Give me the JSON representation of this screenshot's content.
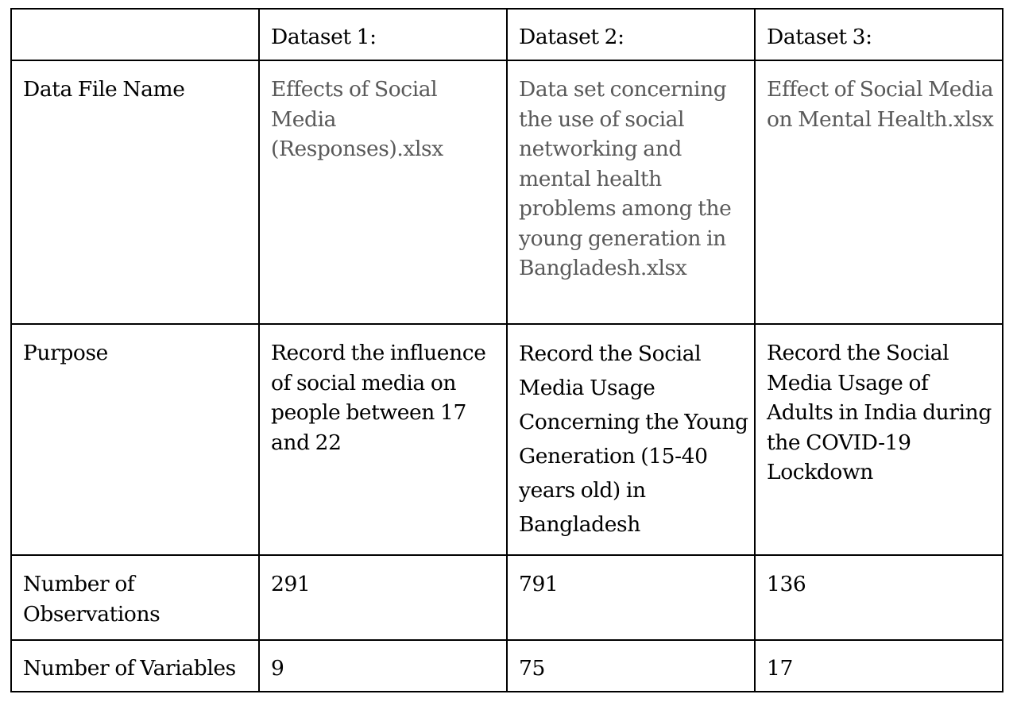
{
  "table": {
    "header": [
      "",
      "Dataset 1:",
      "Dataset 2:",
      "Dataset 3:"
    ],
    "rows": [
      {
        "label": "Data File Name",
        "values": [
          "Effects of Social Media (Responses).xlsx",
          "Data set concerning the use of social networking and mental health problems among the young generation in Bangladesh.xlsx",
          "Effect of Social Media on Mental Health.xlsx"
        ]
      },
      {
        "label": "Purpose",
        "values": [
          "Record the influence of social media on people between 17 and 22",
          "Record the Social Media Usage Concerning the Young Generation (15-40 years old) in Bangladesh",
          "Record the Social Media Usage of Adults in India during the COVID-19 Lockdown"
        ]
      },
      {
        "label": "Number of Observations",
        "values": [
          "291",
          "791",
          "136"
        ]
      },
      {
        "label": "Number of Variables",
        "values": [
          "9",
          "75",
          "17"
        ]
      }
    ]
  },
  "colors": {
    "border": "#000000",
    "text": "#000000",
    "filename_text": "#595959"
  }
}
